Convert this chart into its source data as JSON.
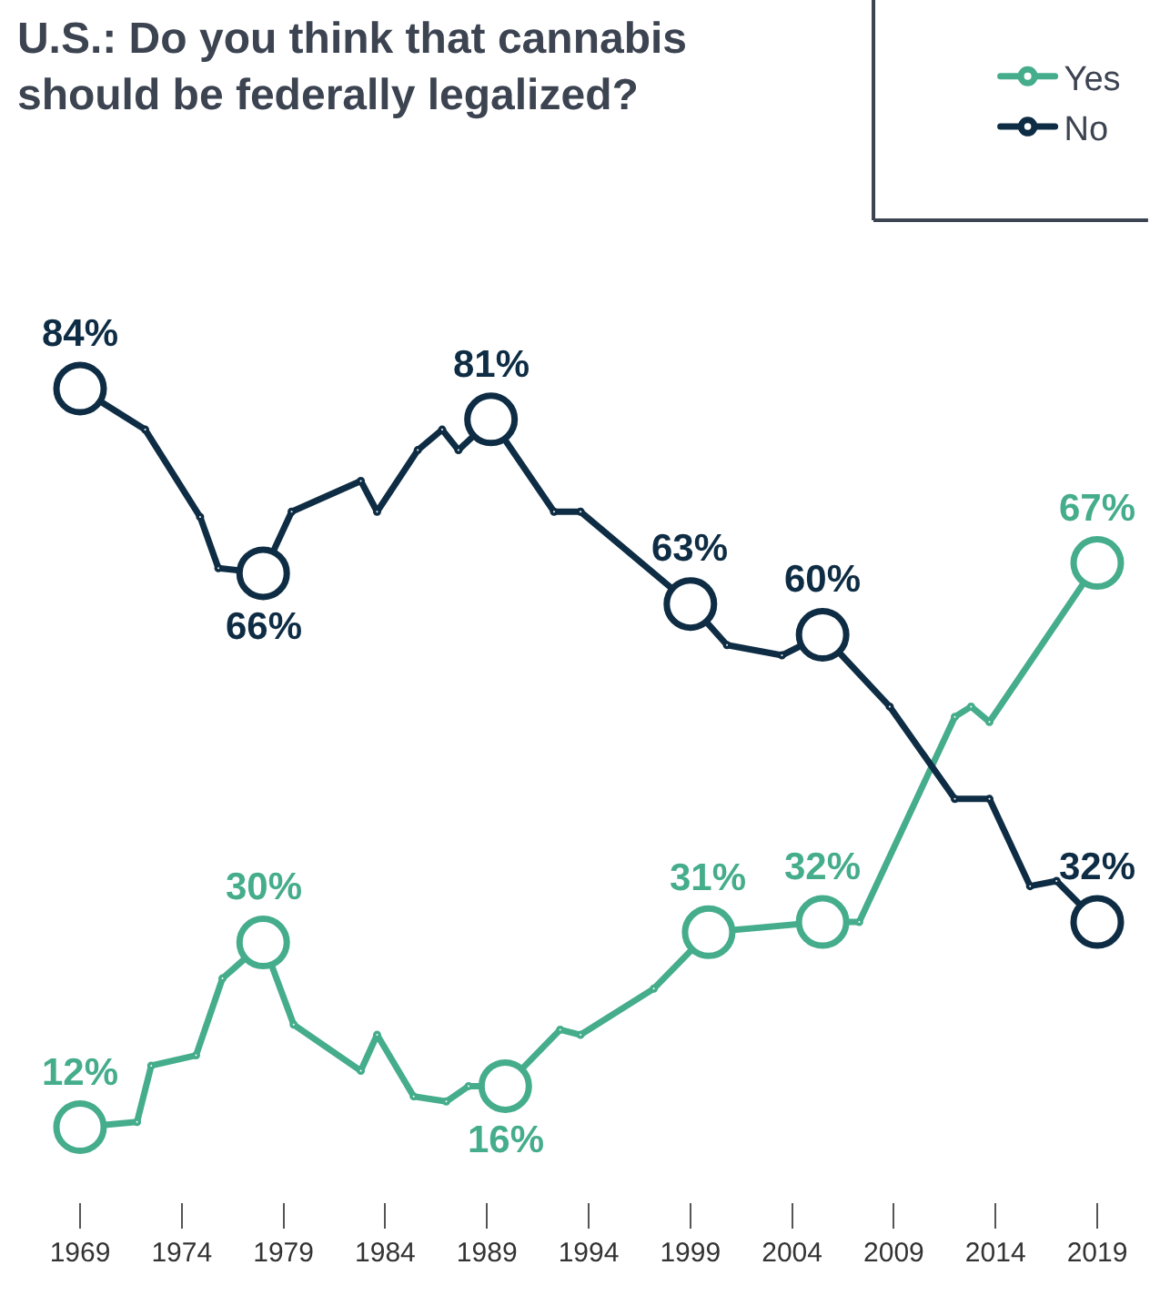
{
  "chart_data": {
    "type": "line",
    "title": "U.S.: Do you think that cannabis\nshould be federally legalized?",
    "xlim": [
      1969,
      2019
    ],
    "xticks": [
      1969,
      1974,
      1979,
      1984,
      1989,
      1994,
      1999,
      2004,
      2009,
      2014,
      2019
    ],
    "tick_labels": "x",
    "legend": "top right",
    "marker": "circle",
    "line_style": "solid",
    "series": [
      {
        "name": "Yes",
        "color": "#45ad8b",
        "x": [
          1969,
          1971.8,
          1972.5,
          1974.7,
          1976,
          1978,
          1979.5,
          1982.8,
          1983.6,
          1985.4,
          1987,
          1988.1,
          1989.9,
          1992.6,
          1993.6,
          1997.2,
          1999.9,
          2005.5,
          2007.3,
          2012,
          2012.8,
          2013.7,
          2019
        ],
        "values": [
          12,
          12.5,
          18,
          19,
          26.5,
          30,
          22,
          17.5,
          21,
          15,
          14.5,
          16,
          16,
          21.5,
          21,
          25.5,
          31,
          32,
          32,
          52,
          53,
          51.5,
          67
        ],
        "value_labels": [
          "12%",
          null,
          null,
          null,
          null,
          "30%",
          null,
          null,
          null,
          null,
          null,
          null,
          "16%",
          null,
          null,
          null,
          "31%",
          "32%",
          null,
          null,
          null,
          null,
          "67%"
        ]
      },
      {
        "name": "No",
        "color": "#0e2d44",
        "x": [
          1969,
          1972.2,
          1974.9,
          1975.8,
          1978,
          1979.4,
          1982.8,
          1983.6,
          1985.6,
          1986.8,
          1987.6,
          1989.2,
          1992.3,
          1993.6,
          1999,
          2000.8,
          2003.5,
          2005.5,
          2008.8,
          2012,
          2013.7,
          2015.7,
          2017,
          2019
        ],
        "values": [
          84,
          80,
          71.5,
          66.5,
          66,
          72,
          75,
          72,
          78,
          80,
          78,
          81,
          72,
          72,
          63,
          59,
          58,
          60,
          53,
          44,
          44,
          35.5,
          36,
          32
        ],
        "value_labels": [
          "84%",
          null,
          null,
          null,
          "66%",
          null,
          null,
          null,
          null,
          null,
          null,
          "81%",
          null,
          null,
          "63%",
          null,
          null,
          "60%",
          null,
          null,
          null,
          null,
          null,
          "32%"
        ]
      }
    ]
  }
}
